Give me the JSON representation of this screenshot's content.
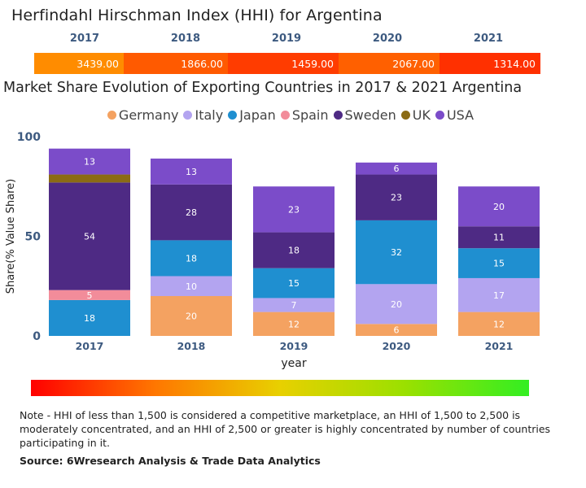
{
  "hhi": {
    "title": "Herfindahl Hirschman Index (HHI) for Argentina",
    "cells": [
      {
        "year": "2017",
        "value": "3439.00",
        "color": "#ff8c00"
      },
      {
        "year": "2018",
        "value": "1866.00",
        "color": "#ff5a00"
      },
      {
        "year": "2019",
        "value": "1459.00",
        "color": "#ff3c00"
      },
      {
        "year": "2020",
        "value": "2067.00",
        "color": "#ff6000"
      },
      {
        "year": "2021",
        "value": "1314.00",
        "color": "#ff3000"
      }
    ]
  },
  "chart_data": {
    "type": "bar",
    "stacked": true,
    "title": "Market Share Evolution of Exporting Countries in 2017 & 2021 Argentina",
    "categories": [
      "2017",
      "2018",
      "2019",
      "2020",
      "2021"
    ],
    "xlabel": "year",
    "ylabel": "Share(% Value Share)",
    "ylim": [
      0,
      100
    ],
    "yticks": [
      0,
      50,
      100
    ],
    "legend_position": "top-center",
    "series": [
      {
        "name": "Germany",
        "color": "#f4a261",
        "values": [
          0,
          20,
          12,
          6,
          12
        ]
      },
      {
        "name": "Italy",
        "color": "#b3a4f0",
        "values": [
          0,
          10,
          7,
          20,
          17
        ]
      },
      {
        "name": "Japan",
        "color": "#1f8fd0",
        "values": [
          18,
          18,
          15,
          32,
          15
        ]
      },
      {
        "name": "Spain",
        "color": "#f28c9a",
        "values": [
          5,
          0,
          0,
          0,
          0
        ]
      },
      {
        "name": "Sweden",
        "color": "#4e2a84",
        "values": [
          54,
          28,
          18,
          23,
          11
        ]
      },
      {
        "name": "UK",
        "color": "#8b6b14",
        "values": [
          4,
          0,
          0,
          0,
          0
        ]
      },
      {
        "name": "USA",
        "color": "#7b4cc9",
        "values": [
          13,
          13,
          23,
          6,
          20
        ]
      }
    ],
    "labels": [
      [
        "",
        "",
        "18",
        "5",
        "54",
        "",
        "13"
      ],
      [
        "20",
        "10",
        "18",
        "",
        "28",
        "",
        "13"
      ],
      [
        "12",
        "7",
        "15",
        "",
        "18",
        "",
        "23"
      ],
      [
        "6",
        "20",
        "32",
        "",
        "23",
        "",
        "6"
      ],
      [
        "12",
        "17",
        "15",
        "",
        "11",
        "",
        "20"
      ]
    ]
  },
  "note": "Note - HHI of less than 1,500 is considered a competitive marketplace, an HHI of 1,500 to 2,500 is moderately concentrated, and an HHI of 2,500 or greater is highly concentrated by number of countries participating in it.",
  "source": "Source: 6Wresearch Analysis & Trade Data Analytics"
}
